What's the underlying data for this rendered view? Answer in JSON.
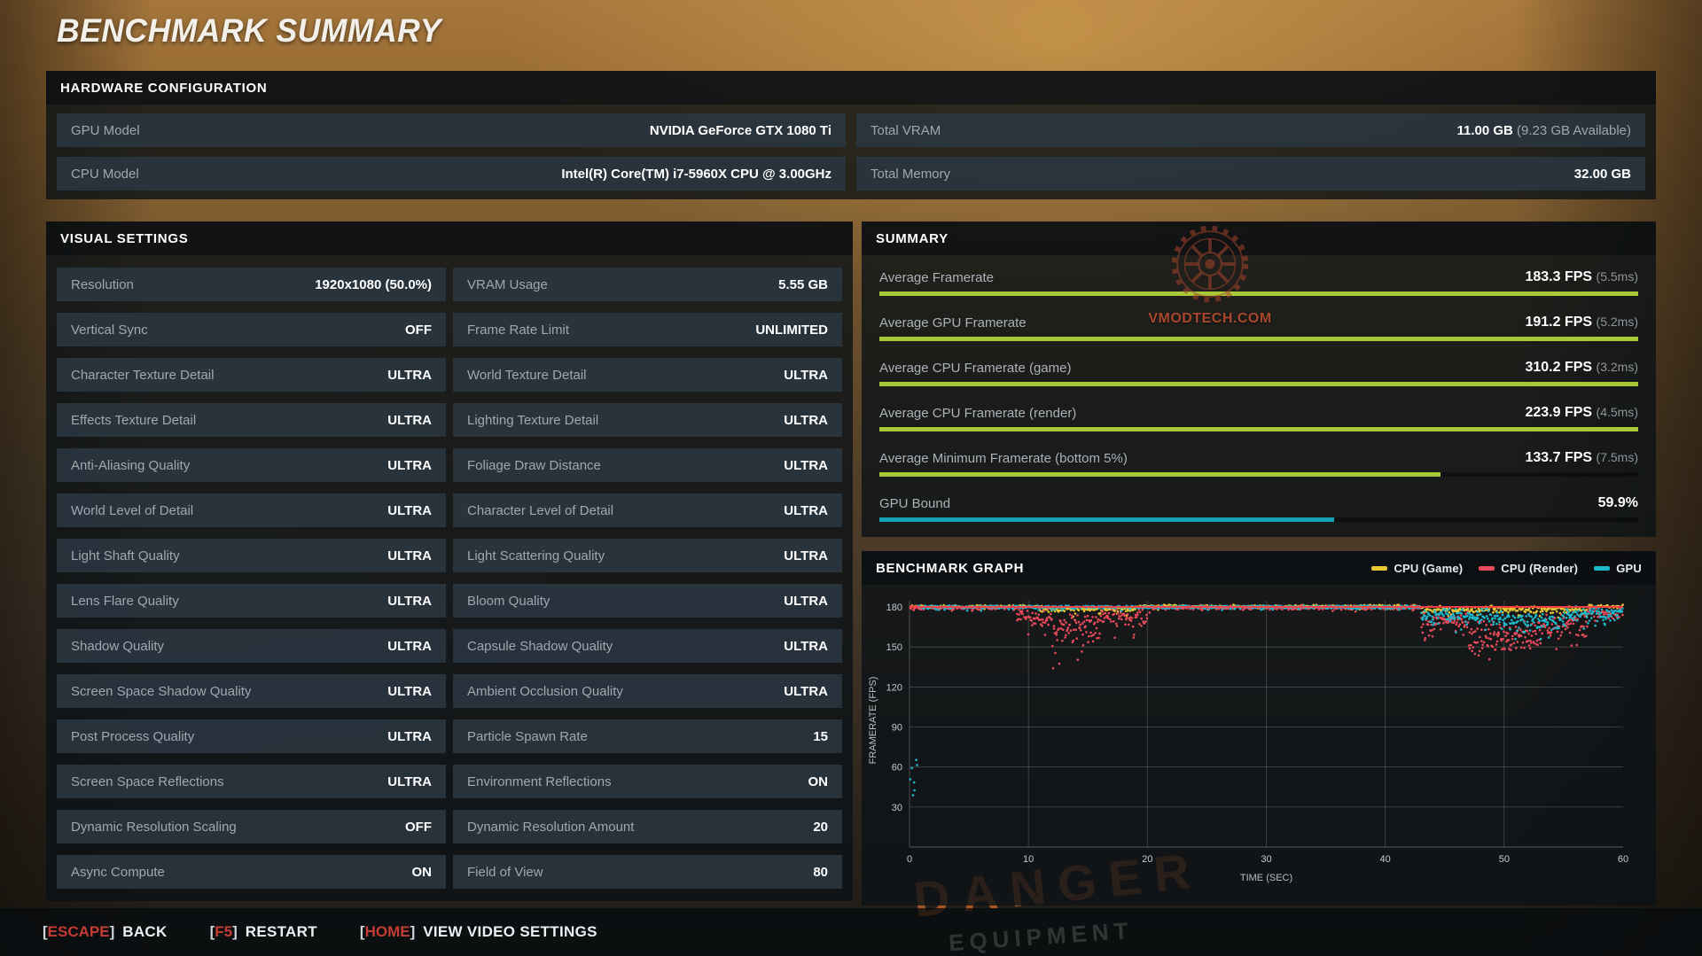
{
  "page_title": "BENCHMARK SUMMARY",
  "background": {
    "danger_text": "DANGER",
    "equipment_text": "EQUIPMENT"
  },
  "watermark": {
    "text": "VMODTECH.COM"
  },
  "hardware": {
    "title": "HARDWARE CONFIGURATION",
    "rows": [
      {
        "label": "GPU Model",
        "value": "NVIDIA GeForce GTX 1080 Ti",
        "extra": ""
      },
      {
        "label": "Total VRAM",
        "value": "11.00 GB",
        "extra": "(9.23 GB Available)"
      },
      {
        "label": "CPU Model",
        "value": "Intel(R) Core(TM) i7-5960X CPU @ 3.00GHz",
        "extra": ""
      },
      {
        "label": "Total Memory",
        "value": "32.00 GB",
        "extra": ""
      }
    ]
  },
  "visual_settings": {
    "title": "VISUAL SETTINGS",
    "left": [
      {
        "label": "Resolution",
        "value": "1920x1080 (50.0%)"
      },
      {
        "label": "Vertical Sync",
        "value": "OFF"
      },
      {
        "label": "Character Texture Detail",
        "value": "ULTRA"
      },
      {
        "label": "Effects Texture Detail",
        "value": "ULTRA"
      },
      {
        "label": "Anti-Aliasing Quality",
        "value": "ULTRA"
      },
      {
        "label": "World Level of Detail",
        "value": "ULTRA"
      },
      {
        "label": "Light Shaft Quality",
        "value": "ULTRA"
      },
      {
        "label": "Lens Flare Quality",
        "value": "ULTRA"
      },
      {
        "label": "Shadow Quality",
        "value": "ULTRA"
      },
      {
        "label": "Screen Space Shadow Quality",
        "value": "ULTRA"
      },
      {
        "label": "Post Process Quality",
        "value": "ULTRA"
      },
      {
        "label": "Screen Space Reflections",
        "value": "ULTRA"
      },
      {
        "label": "Dynamic Resolution Scaling",
        "value": "OFF"
      },
      {
        "label": "Async Compute",
        "value": "ON"
      }
    ],
    "right": [
      {
        "label": "VRAM Usage",
        "value": "5.55 GB"
      },
      {
        "label": "Frame Rate Limit",
        "value": "UNLIMITED"
      },
      {
        "label": "World Texture Detail",
        "value": "ULTRA"
      },
      {
        "label": "Lighting Texture Detail",
        "value": "ULTRA"
      },
      {
        "label": "Foliage Draw Distance",
        "value": "ULTRA"
      },
      {
        "label": "Character Level of Detail",
        "value": "ULTRA"
      },
      {
        "label": "Light Scattering Quality",
        "value": "ULTRA"
      },
      {
        "label": "Bloom Quality",
        "value": "ULTRA"
      },
      {
        "label": "Capsule Shadow Quality",
        "value": "ULTRA"
      },
      {
        "label": "Ambient Occlusion Quality",
        "value": "ULTRA"
      },
      {
        "label": "Particle Spawn Rate",
        "value": "15"
      },
      {
        "label": "Environment Reflections",
        "value": "ON"
      },
      {
        "label": "Dynamic Resolution Amount",
        "value": "20"
      },
      {
        "label": "Field of View",
        "value": "80"
      }
    ]
  },
  "summary": {
    "title": "SUMMARY",
    "bar_colors": {
      "framerate": "#a8c838",
      "gpu_bound": "#12a0b6"
    },
    "metrics": [
      {
        "label": "Average Framerate",
        "value": "183.3 FPS",
        "ms": "(5.5ms)",
        "bar_pct": 100,
        "bar_color": "#a8c838"
      },
      {
        "label": "Average GPU Framerate",
        "value": "191.2 FPS",
        "ms": "(5.2ms)",
        "bar_pct": 100,
        "bar_color": "#a8c838"
      },
      {
        "label": "Average CPU Framerate (game)",
        "value": "310.2 FPS",
        "ms": "(3.2ms)",
        "bar_pct": 100,
        "bar_color": "#a8c838"
      },
      {
        "label": "Average CPU Framerate (render)",
        "value": "223.9 FPS",
        "ms": "(4.5ms)",
        "bar_pct": 100,
        "bar_color": "#a8c838"
      },
      {
        "label": "Average Minimum Framerate (bottom 5%)",
        "value": "133.7 FPS",
        "ms": "(7.5ms)",
        "bar_pct": 74,
        "bar_color": "#a8c838"
      },
      {
        "label": "GPU Bound",
        "value": "59.9%",
        "ms": "",
        "bar_pct": 59.9,
        "bar_color": "#12a0b6"
      }
    ]
  },
  "graph": {
    "title": "BENCHMARK GRAPH"
  },
  "chart_data": {
    "type": "scatter",
    "title": "BENCHMARK GRAPH",
    "xlabel": "TIME (SEC)",
    "ylabel": "FRAMERATE (FPS)",
    "xlim": [
      0,
      60
    ],
    "ylim": [
      0,
      190
    ],
    "x_ticks": [
      0,
      10,
      20,
      30,
      40,
      50,
      60
    ],
    "y_ticks": [
      30,
      60,
      90,
      120,
      150,
      180
    ],
    "grid": true,
    "legend_position": "top-right",
    "cap_line": {
      "y": 180,
      "color": "#ff3c46"
    },
    "legend": [
      {
        "label": "CPU (Game)",
        "color": "#e7c733"
      },
      {
        "label": "CPU (Render)",
        "color": "#ea4b5b"
      },
      {
        "label": "GPU",
        "color": "#1cb8cc"
      }
    ],
    "segments_format": [
      "x_start_sec",
      "x_end_sec",
      "base_fps",
      "jitter_fps",
      "points_per_sec"
    ],
    "series": [
      {
        "name": "CPU (Game)",
        "color": "#e7c733",
        "segments": [
          [
            0,
            11,
            180.5,
            1.2,
            10
          ],
          [
            11,
            19,
            178.5,
            2.5,
            14
          ],
          [
            19,
            43,
            180.5,
            1.2,
            10
          ],
          [
            43,
            57,
            178,
            3,
            14
          ],
          [
            57,
            60,
            180.5,
            1.2,
            10
          ]
        ]
      },
      {
        "name": "CPU (Render)",
        "color": "#ea4b5b",
        "segments": [
          [
            0,
            9,
            179.5,
            1.5,
            14
          ],
          [
            9,
            12,
            173,
            8,
            18
          ],
          [
            12,
            16,
            163,
            14,
            20
          ],
          [
            16,
            20,
            172,
            9,
            16
          ],
          [
            20,
            43,
            179.5,
            1.8,
            14
          ],
          [
            43,
            47,
            169,
            9,
            18
          ],
          [
            47,
            53,
            158,
            13,
            20
          ],
          [
            53,
            57,
            166,
            10,
            18
          ],
          [
            57,
            60,
            175,
            5,
            14
          ]
        ]
      },
      {
        "name": "GPU",
        "color": "#1cb8cc",
        "segments": [
          [
            0,
            0.7,
            48,
            22,
            10
          ],
          [
            0.7,
            43,
            180,
            1.2,
            14
          ],
          [
            43,
            50,
            173,
            7,
            18
          ],
          [
            50,
            55,
            169,
            8,
            18
          ],
          [
            55,
            60,
            175,
            6,
            18
          ]
        ]
      }
    ]
  },
  "footer": {
    "items": [
      {
        "key": "ESCAPE",
        "action": "BACK"
      },
      {
        "key": "F5",
        "action": "RESTART"
      },
      {
        "key": "HOME",
        "action": "VIEW VIDEO SETTINGS"
      }
    ]
  }
}
